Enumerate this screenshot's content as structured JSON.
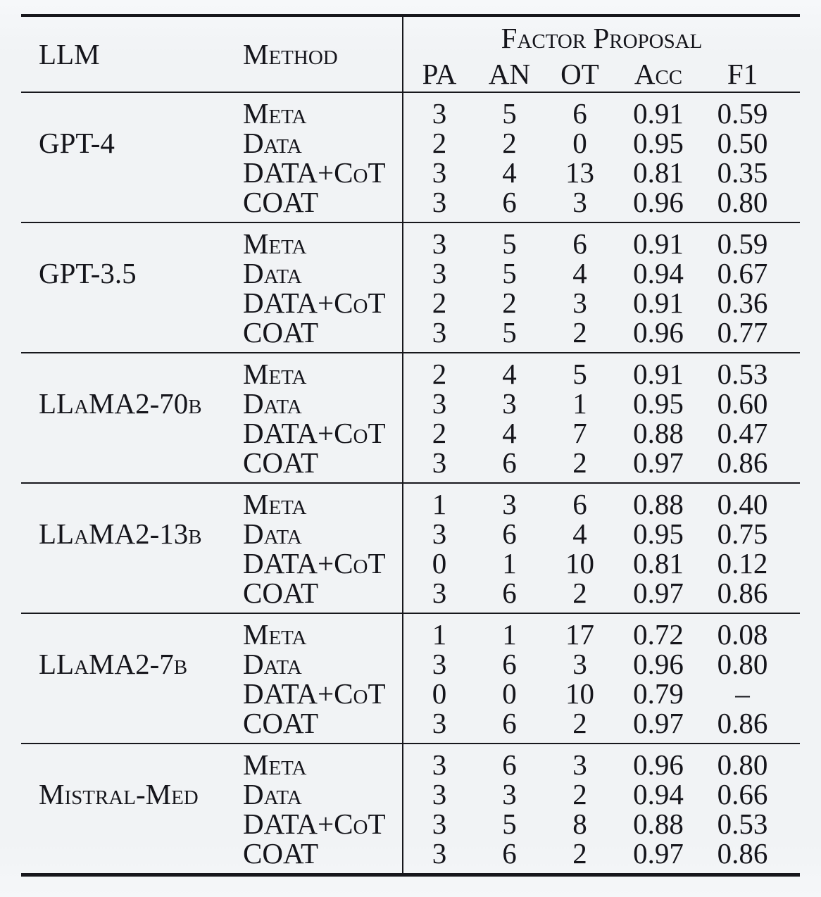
{
  "table": {
    "headers": {
      "llm": "LLM",
      "method": "Method",
      "factor_proposal": "Factor Proposal",
      "sub": {
        "pa": "PA",
        "an": "AN",
        "ot": "OT",
        "acc": "Acc",
        "f1": "F1"
      }
    },
    "groups": [
      {
        "llm": "GPT-4",
        "rows": [
          {
            "method": "Meta",
            "values": [
              "3",
              "5",
              "6",
              "0.91",
              "0.59"
            ]
          },
          {
            "method": "Data",
            "values": [
              "2",
              "2",
              "0",
              "0.95",
              "0.50"
            ]
          },
          {
            "method": "DATA+CoT",
            "values": [
              "3",
              "4",
              "13",
              "0.81",
              "0.35"
            ]
          },
          {
            "method": "COAT",
            "values": [
              "3",
              "6",
              "3",
              "0.96",
              "0.80"
            ]
          }
        ]
      },
      {
        "llm": "GPT-3.5",
        "rows": [
          {
            "method": "Meta",
            "values": [
              "3",
              "5",
              "6",
              "0.91",
              "0.59"
            ]
          },
          {
            "method": "Data",
            "values": [
              "3",
              "5",
              "4",
              "0.94",
              "0.67"
            ]
          },
          {
            "method": "DATA+CoT",
            "values": [
              "2",
              "2",
              "3",
              "0.91",
              "0.36"
            ]
          },
          {
            "method": "COAT",
            "values": [
              "3",
              "5",
              "2",
              "0.96",
              "0.77"
            ]
          }
        ]
      },
      {
        "llm": "LLaMA2-70b",
        "rows": [
          {
            "method": "Meta",
            "values": [
              "2",
              "4",
              "5",
              "0.91",
              "0.53"
            ]
          },
          {
            "method": "Data",
            "values": [
              "3",
              "3",
              "1",
              "0.95",
              "0.60"
            ]
          },
          {
            "method": "DATA+CoT",
            "values": [
              "2",
              "4",
              "7",
              "0.88",
              "0.47"
            ]
          },
          {
            "method": "COAT",
            "values": [
              "3",
              "6",
              "2",
              "0.97",
              "0.86"
            ]
          }
        ]
      },
      {
        "llm": "LLaMA2-13b",
        "rows": [
          {
            "method": "Meta",
            "values": [
              "1",
              "3",
              "6",
              "0.88",
              "0.40"
            ]
          },
          {
            "method": "Data",
            "values": [
              "3",
              "6",
              "4",
              "0.95",
              "0.75"
            ]
          },
          {
            "method": "DATA+CoT",
            "values": [
              "0",
              "1",
              "10",
              "0.81",
              "0.12"
            ]
          },
          {
            "method": "COAT",
            "values": [
              "3",
              "6",
              "2",
              "0.97",
              "0.86"
            ]
          }
        ]
      },
      {
        "llm": "LLaMA2-7b",
        "rows": [
          {
            "method": "Meta",
            "values": [
              "1",
              "1",
              "17",
              "0.72",
              "0.08"
            ]
          },
          {
            "method": "Data",
            "values": [
              "3",
              "6",
              "3",
              "0.96",
              "0.80"
            ]
          },
          {
            "method": "DATA+CoT",
            "values": [
              "0",
              "0",
              "10",
              "0.79",
              "–"
            ]
          },
          {
            "method": "COAT",
            "values": [
              "3",
              "6",
              "2",
              "0.97",
              "0.86"
            ]
          }
        ]
      },
      {
        "llm": "Mistral-Med",
        "rows": [
          {
            "method": "Meta",
            "values": [
              "3",
              "6",
              "3",
              "0.96",
              "0.80"
            ]
          },
          {
            "method": "Data",
            "values": [
              "3",
              "3",
              "2",
              "0.94",
              "0.66"
            ]
          },
          {
            "method": "DATA+CoT",
            "values": [
              "3",
              "5",
              "8",
              "0.88",
              "0.53"
            ]
          },
          {
            "method": "COAT",
            "values": [
              "3",
              "6",
              "2",
              "0.97",
              "0.86"
            ]
          }
        ]
      }
    ]
  }
}
